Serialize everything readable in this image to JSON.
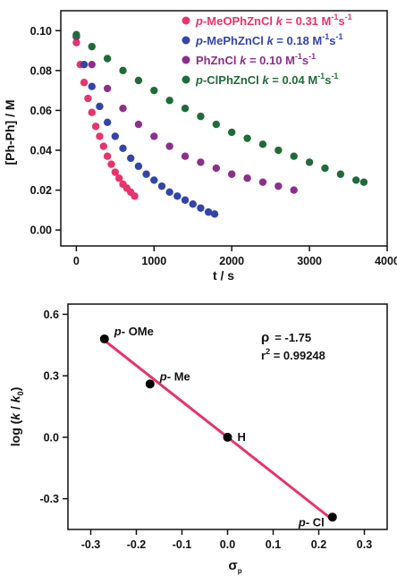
{
  "chart_data": [
    {
      "type": "scatter",
      "xlabel": "t / s",
      "ylabel": "[Ph-Ph] / M",
      "xlim": [
        -200,
        4000
      ],
      "ylim": [
        -0.008,
        0.11
      ],
      "xticks": [
        0,
        1000,
        2000,
        3000,
        4000
      ],
      "xtick_labels": [
        "0",
        "1000",
        "2000",
        "3000",
        "4000"
      ],
      "yticks": [
        0.0,
        0.02,
        0.04,
        0.06,
        0.08,
        0.1
      ],
      "ytick_labels": [
        "0.00",
        "0.02",
        "0.04",
        "0.06",
        "0.08",
        "0.10"
      ],
      "grid": false,
      "legend_position": "top-right",
      "series": [
        {
          "name": "p-MeOPhZnCl k = 0.31 M-1s-1",
          "legend": {
            "prefix": "p",
            "rest": "-MeOPhZnCl ",
            "k_label": "k",
            "k_value": " = 0.31 M",
            "exp1": "-1",
            "s_unit": "s",
            "exp2": "-1"
          },
          "color": "#e8336b",
          "x": [
            0,
            50,
            100,
            150,
            200,
            250,
            300,
            350,
            400,
            450,
            500,
            550,
            600,
            650,
            700,
            750
          ],
          "y": [
            0.094,
            0.083,
            0.074,
            0.066,
            0.059,
            0.052,
            0.047,
            0.042,
            0.037,
            0.033,
            0.029,
            0.026,
            0.023,
            0.021,
            0.019,
            0.017
          ]
        },
        {
          "name": "p-MePhZnCl k = 0.18 M-1s-1",
          "legend": {
            "prefix": "p",
            "rest": "-MePhZnCl ",
            "k_label": "k",
            "k_value": " = 0.18 M",
            "exp1": "-1",
            "s_unit": "s",
            "exp2": "-1"
          },
          "color": "#3344aa",
          "x": [
            0,
            100,
            200,
            300,
            400,
            500,
            600,
            700,
            800,
            900,
            1000,
            1100,
            1200,
            1300,
            1400,
            1500,
            1600,
            1700,
            1780
          ],
          "y": [
            0.097,
            0.083,
            0.072,
            0.062,
            0.054,
            0.047,
            0.041,
            0.036,
            0.032,
            0.028,
            0.025,
            0.022,
            0.019,
            0.017,
            0.015,
            0.013,
            0.011,
            0.009,
            0.008
          ]
        },
        {
          "name": "PhZnCl k = 0.10 M-1s-1",
          "legend": {
            "prefix": "",
            "rest": "PhZnCl ",
            "k_label": "k",
            "k_value": " = 0.10 M",
            "exp1": "-1",
            "s_unit": "s",
            "exp2": "-1"
          },
          "color": "#8e2e8a",
          "x": [
            0,
            200,
            400,
            600,
            800,
            1000,
            1200,
            1400,
            1600,
            1800,
            2000,
            2200,
            2400,
            2600,
            2800
          ],
          "y": [
            0.097,
            0.083,
            0.071,
            0.061,
            0.053,
            0.047,
            0.042,
            0.037,
            0.034,
            0.031,
            0.028,
            0.026,
            0.024,
            0.022,
            0.02
          ]
        },
        {
          "name": "p-ClPhZnCl k = 0.04 M-1s-1",
          "legend": {
            "prefix": "p",
            "rest": "-ClPhZnCl ",
            "k_label": "k",
            "k_value": " = 0.04 M",
            "exp1": "-1",
            "s_unit": "s",
            "exp2": "-1"
          },
          "color": "#1f6b3a",
          "x": [
            0,
            200,
            400,
            600,
            800,
            1000,
            1200,
            1400,
            1600,
            1800,
            2000,
            2200,
            2400,
            2600,
            2800,
            3000,
            3200,
            3400,
            3600,
            3700
          ],
          "y": [
            0.098,
            0.092,
            0.086,
            0.08,
            0.075,
            0.07,
            0.065,
            0.061,
            0.057,
            0.053,
            0.049,
            0.046,
            0.043,
            0.04,
            0.037,
            0.034,
            0.031,
            0.028,
            0.025,
            0.024
          ]
        }
      ]
    },
    {
      "type": "scatter",
      "xlabel": "σp",
      "xlabel_main": "σ",
      "xlabel_sub": "p",
      "ylabel": "log (k / k0)",
      "ylabel_parts": {
        "a": "log (",
        "k1": "k",
        "b": " / ",
        "k2": "k",
        "sub": "0",
        "c": ")"
      },
      "xlim": [
        -0.35,
        0.35
      ],
      "ylim": [
        -0.45,
        0.65
      ],
      "xticks": [
        -0.3,
        -0.2,
        -0.1,
        0.0,
        0.1,
        0.2,
        0.3
      ],
      "xtick_labels": [
        "-0.3",
        "-0.2",
        "-0.1",
        "0.0",
        "0.1",
        "0.2",
        "0.3"
      ],
      "yticks": [
        -0.3,
        0.0,
        0.3,
        0.6
      ],
      "ytick_labels": [
        "-0.3",
        "0.0",
        "0.3",
        "0.6"
      ],
      "grid": false,
      "points": [
        {
          "x": -0.27,
          "y": 0.48,
          "label_prefix": "p",
          "label_rest": "- OMe"
        },
        {
          "x": -0.17,
          "y": 0.26,
          "label_prefix": "p",
          "label_rest": "- Me"
        },
        {
          "x": 0.0,
          "y": 0.0,
          "label_prefix": "",
          "label_rest": "H"
        },
        {
          "x": 0.23,
          "y": -0.39,
          "label_prefix": "p",
          "label_rest": "- Cl"
        }
      ],
      "point_color": "#000000",
      "fit_line": {
        "slope": -1.75,
        "intercept": 0.0,
        "x_range": [
          -0.275,
          0.23
        ],
        "color": "#e8336b"
      },
      "annotations": {
        "rho_label": "ρ",
        "rho_value": "= -1.75",
        "r2_label": "r",
        "r2_exp": "2",
        "r2_value": " = 0.99248"
      }
    }
  ]
}
